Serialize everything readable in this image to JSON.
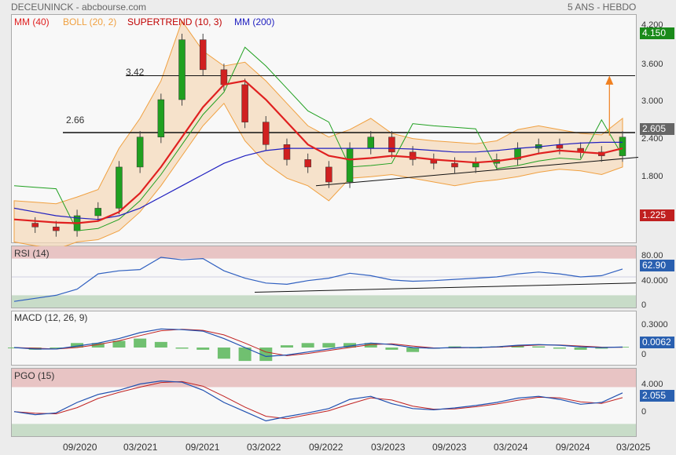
{
  "header": {
    "title": "DECEUNINCK - abcbourse.com",
    "period": "5 ANS - HEBDO"
  },
  "legend": [
    {
      "label": "MM (40)",
      "color": "#e02020"
    },
    {
      "label": "BOLL (20, 2)",
      "color": "#f0a040"
    },
    {
      "label": "SUPERTREND (10, 3)",
      "color": "#c00000"
    },
    {
      "label": "MM (200)",
      "color": "#2020c0"
    }
  ],
  "price_axis": [
    "4.200",
    "3.600",
    "3.000",
    "2.400",
    "1.800"
  ],
  "price_tags": {
    "high": "4.150",
    "last": "2.605",
    "low": "1.225"
  },
  "annotations": {
    "res1": "3.42",
    "res2": "2.66"
  },
  "rsi": {
    "label": "RSI (14)",
    "axis": [
      "80.00",
      "40.000",
      "0"
    ],
    "value": "62.90"
  },
  "macd": {
    "label": "MACD (12, 26, 9)",
    "axis": [
      "0.3000",
      "0"
    ],
    "value": "0.0062"
  },
  "pgo": {
    "label": "PGO (15)",
    "axis": [
      "4.000",
      "0"
    ],
    "value": "2.055"
  },
  "dates": [
    "09/2020",
    "03/2021",
    "09/2021",
    "03/2022",
    "09/2022",
    "03/2023",
    "09/2023",
    "03/2024",
    "09/2024",
    "03/2025"
  ],
  "colors": {
    "up": "#20a020",
    "down": "#d02020",
    "ma40": "#e02020",
    "ma200": "#2020c0",
    "boll": "#f0a040",
    "supertrend_up": "#20a020",
    "supertrend_down": "#c00000",
    "rsi": "#3060c0"
  },
  "chart_data": {
    "type": "line",
    "x": [
      "2020-04",
      "2020-06",
      "2020-08",
      "2020-10",
      "2020-12",
      "2021-02",
      "2021-04",
      "2021-06",
      "2021-08",
      "2021-10",
      "2021-12",
      "2022-02",
      "2022-04",
      "2022-06",
      "2022-08",
      "2022-10",
      "2022-12",
      "2023-02",
      "2023-04",
      "2023-06",
      "2023-08",
      "2023-10",
      "2023-12",
      "2024-02",
      "2024-04",
      "2024-06",
      "2024-08",
      "2024-10",
      "2024-12",
      "2025-02"
    ],
    "series": [
      {
        "name": "Close",
        "values": [
          1.45,
          1.4,
          1.35,
          1.55,
          1.65,
          2.2,
          2.6,
          3.1,
          3.9,
          3.5,
          3.3,
          2.8,
          2.5,
          2.3,
          2.2,
          2.0,
          2.45,
          2.6,
          2.4,
          2.3,
          2.25,
          2.2,
          2.25,
          2.3,
          2.45,
          2.5,
          2.45,
          2.4,
          2.35,
          2.6
        ]
      },
      {
        "name": "MM (40)",
        "values": [
          1.5,
          1.48,
          1.46,
          1.45,
          1.48,
          1.6,
          1.85,
          2.2,
          2.6,
          3.0,
          3.3,
          3.35,
          3.1,
          2.8,
          2.5,
          2.35,
          2.3,
          2.32,
          2.35,
          2.33,
          2.3,
          2.28,
          2.26,
          2.28,
          2.32,
          2.38,
          2.42,
          2.4,
          2.38,
          2.45
        ]
      },
      {
        "name": "MM (200)",
        "values": [
          1.65,
          1.6,
          1.55,
          1.52,
          1.5,
          1.55,
          1.65,
          1.8,
          1.95,
          2.1,
          2.25,
          2.35,
          2.42,
          2.45,
          2.45,
          2.45,
          2.45,
          2.45,
          2.45,
          2.44,
          2.42,
          2.4,
          2.4,
          2.42,
          2.45,
          2.47,
          2.5,
          2.52,
          2.53,
          2.53
        ]
      },
      {
        "name": "RSI (14)",
        "values": [
          10,
          15,
          20,
          30,
          55,
          60,
          62,
          82,
          78,
          80,
          60,
          48,
          40,
          38,
          44,
          48,
          56,
          52,
          45,
          43,
          44,
          46,
          48,
          50,
          55,
          58,
          55,
          50,
          52,
          62.9
        ]
      },
      {
        "name": "MACD (12, 26, 9)",
        "values": [
          0,
          -0.02,
          -0.02,
          0.02,
          0.06,
          0.12,
          0.2,
          0.25,
          0.24,
          0.22,
          0.12,
          0.0,
          -0.12,
          -0.1,
          -0.06,
          -0.02,
          0.02,
          0.06,
          0.04,
          0.0,
          -0.01,
          0.0,
          0.0,
          0.01,
          0.03,
          0.04,
          0.03,
          0.01,
          0.0,
          0.0062
        ]
      },
      {
        "name": "PGO (15)",
        "values": [
          -1,
          -1.5,
          -1.2,
          0.5,
          1.8,
          2.5,
          3.5,
          4.0,
          3.8,
          2.5,
          0.5,
          -1.0,
          -2.5,
          -1.8,
          -1.2,
          -0.5,
          1.0,
          1.5,
          0.3,
          -0.5,
          -0.7,
          -0.4,
          0,
          0.5,
          1.2,
          1.5,
          1.0,
          0.2,
          0.5,
          2.055
        ]
      }
    ],
    "levels": [
      3.42,
      2.66
    ],
    "ylim_price": [
      1.225,
      4.2
    ],
    "ylim_rsi": [
      0,
      100
    ],
    "ylim_pgo": [
      -5,
      6
    ]
  }
}
